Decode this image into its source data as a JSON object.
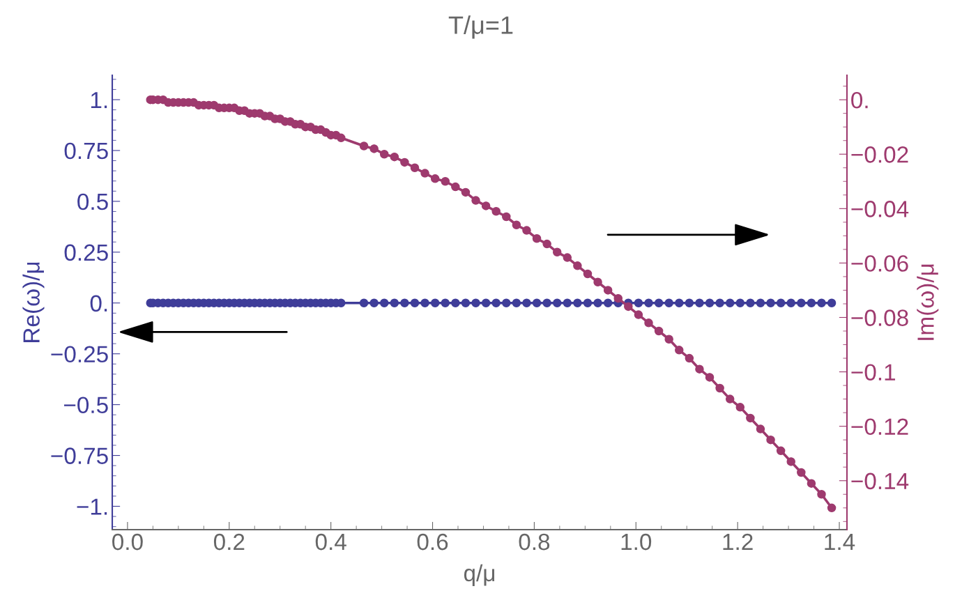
{
  "chart_data": {
    "type": "line",
    "title": "T/μ=1",
    "xlabel": "q/μ",
    "ylabel": "Re(ω)/μ",
    "y2label": "Im(ω)/μ",
    "x": [
      0.045,
      0.05,
      0.06,
      0.07,
      0.08,
      0.09,
      0.1,
      0.11,
      0.12,
      0.13,
      0.14,
      0.15,
      0.16,
      0.17,
      0.18,
      0.19,
      0.2,
      0.21,
      0.22,
      0.23,
      0.24,
      0.25,
      0.26,
      0.27,
      0.28,
      0.29,
      0.3,
      0.31,
      0.32,
      0.33,
      0.34,
      0.35,
      0.36,
      0.37,
      0.38,
      0.39,
      0.4,
      0.41,
      0.42,
      0.465,
      0.485,
      0.505,
      0.525,
      0.545,
      0.565,
      0.585,
      0.605,
      0.625,
      0.645,
      0.665,
      0.685,
      0.705,
      0.725,
      0.745,
      0.765,
      0.785,
      0.805,
      0.825,
      0.845,
      0.865,
      0.885,
      0.905,
      0.925,
      0.945,
      0.965,
      0.985,
      1.005,
      1.025,
      1.045,
      1.065,
      1.085,
      1.105,
      1.125,
      1.145,
      1.165,
      1.185,
      1.205,
      1.225,
      1.245,
      1.265,
      1.285,
      1.305,
      1.325,
      1.345,
      1.365,
      1.385
    ],
    "series": [
      {
        "color": "#3f3d99",
        "axis": "y",
        "values": [
          0,
          0,
          0,
          0,
          0,
          0,
          0,
          0,
          0,
          0,
          0,
          0,
          0,
          0,
          0,
          0,
          0,
          0,
          0,
          0,
          0,
          0,
          0,
          0,
          0,
          0,
          0,
          0,
          0,
          0,
          0,
          0,
          0,
          0,
          0,
          0,
          0,
          0,
          0,
          0,
          0,
          0,
          0,
          0,
          0,
          0,
          0,
          0,
          0,
          0,
          0,
          0,
          0,
          0,
          0,
          0,
          0,
          0,
          0,
          0,
          0,
          0,
          0,
          0,
          0,
          0,
          0,
          0,
          0,
          0,
          0,
          0,
          0,
          0,
          0,
          0,
          0,
          0,
          0,
          0,
          0,
          0,
          0,
          0,
          0,
          0
        ]
      },
      {
        "color": "#9e3a6e",
        "axis": "y2",
        "values": [
          0,
          0,
          0,
          0,
          -0.001,
          -0.001,
          -0.001,
          -0.001,
          -0.001,
          -0.001,
          -0.002,
          -0.002,
          -0.002,
          -0.002,
          -0.003,
          -0.003,
          -0.003,
          -0.003,
          -0.004,
          -0.004,
          -0.005,
          -0.005,
          -0.005,
          -0.006,
          -0.006,
          -0.007,
          -0.007,
          -0.008,
          -0.008,
          -0.009,
          -0.009,
          -0.01,
          -0.01,
          -0.011,
          -0.011,
          -0.012,
          -0.013,
          -0.013,
          -0.014,
          -0.017,
          -0.018,
          -0.02,
          -0.021,
          -0.023,
          -0.025,
          -0.027,
          -0.029,
          -0.03,
          -0.032,
          -0.034,
          -0.037,
          -0.039,
          -0.041,
          -0.043,
          -0.046,
          -0.048,
          -0.051,
          -0.053,
          -0.056,
          -0.058,
          -0.061,
          -0.064,
          -0.067,
          -0.07,
          -0.073,
          -0.076,
          -0.079,
          -0.082,
          -0.085,
          -0.088,
          -0.092,
          -0.095,
          -0.099,
          -0.102,
          -0.106,
          -0.11,
          -0.113,
          -0.117,
          -0.121,
          -0.125,
          -0.129,
          -0.133,
          -0.137,
          -0.141,
          -0.145,
          -0.15
        ]
      }
    ],
    "xlim": [
      -0.03,
      1.415
    ],
    "xticks": [
      {
        "value": 0,
        "label": "0.0"
      },
      0.2,
      0.4,
      0.6,
      0.8,
      {
        "value": 1,
        "label": "1.0"
      },
      1.2,
      1.4
    ],
    "ylim": [
      -1.115,
      1.12
    ],
    "yticks": [
      {
        "value": 1,
        "label": "1."
      },
      0.75,
      0.5,
      0.25,
      {
        "value": 0,
        "label": "0."
      },
      {
        "value": -0.25,
        "label": "−0.25"
      },
      {
        "value": -0.5,
        "label": "−0.5"
      },
      {
        "value": -0.75,
        "label": "−0.75"
      },
      {
        "value": -1,
        "label": "−1."
      }
    ],
    "y2lim": [
      -0.158,
      0.009
    ],
    "y2ticks": [
      {
        "value": 0,
        "label": "0."
      },
      {
        "value": -0.02,
        "label": "−0.02"
      },
      {
        "value": -0.04,
        "label": "−0.04"
      },
      {
        "value": -0.06,
        "label": "−0.06"
      },
      {
        "value": -0.08,
        "label": "−0.08"
      },
      {
        "value": -0.1,
        "label": "−0.1"
      },
      {
        "value": -0.12,
        "label": "−0.12"
      },
      {
        "value": -0.14,
        "label": "−0.14"
      }
    ],
    "marker": "circle",
    "line_style": "solid"
  }
}
